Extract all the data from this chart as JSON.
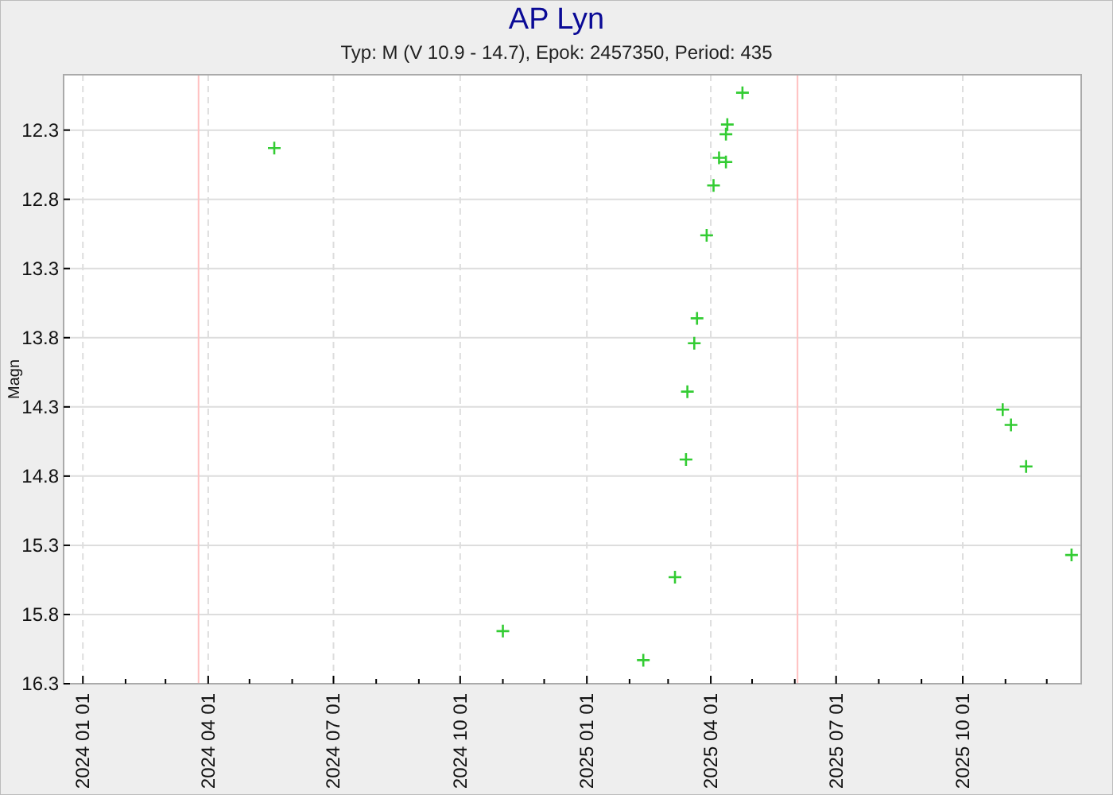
{
  "chart_data": {
    "type": "scatter",
    "title": "AP Lyn",
    "subtitle": "Typ: M (V 10.9 - 14.7), Epok: 2457350, Period: 435",
    "ylabel": "Magn",
    "xlim": [
      "2023-12-18",
      "2025-12-26"
    ],
    "ylim": [
      16.3,
      11.9
    ],
    "xticks": [
      {
        "value": "2024-01-01",
        "label": "2024 01 01"
      },
      {
        "value": "2024-02-01",
        "label": null
      },
      {
        "value": "2024-03-01",
        "label": null
      },
      {
        "value": "2024-04-01",
        "label": "2024 04 01"
      },
      {
        "value": "2024-05-01",
        "label": null
      },
      {
        "value": "2024-06-01",
        "label": null
      },
      {
        "value": "2024-07-01",
        "label": "2024 07 01"
      },
      {
        "value": "2024-08-01",
        "label": null
      },
      {
        "value": "2024-09-01",
        "label": null
      },
      {
        "value": "2024-10-01",
        "label": "2024 10 01"
      },
      {
        "value": "2024-11-01",
        "label": null
      },
      {
        "value": "2024-12-01",
        "label": null
      },
      {
        "value": "2025-01-01",
        "label": "2025 01 01"
      },
      {
        "value": "2025-02-01",
        "label": null
      },
      {
        "value": "2025-03-01",
        "label": null
      },
      {
        "value": "2025-04-01",
        "label": "2025 04 01"
      },
      {
        "value": "2025-05-01",
        "label": null
      },
      {
        "value": "2025-06-01",
        "label": null
      },
      {
        "value": "2025-07-01",
        "label": "2025 07 01"
      },
      {
        "value": "2025-08-01",
        "label": null
      },
      {
        "value": "2025-09-01",
        "label": null
      },
      {
        "value": "2025-10-01",
        "label": "2025 10 01"
      },
      {
        "value": "2025-11-01",
        "label": null
      },
      {
        "value": "2025-12-01",
        "label": null
      }
    ],
    "yticks": [
      12.3,
      12.8,
      13.3,
      13.8,
      14.3,
      14.8,
      15.3,
      15.8,
      16.3
    ],
    "grid": true,
    "marker": "cross",
    "ref_lines": [
      {
        "axis": "x",
        "value": "2024-03-25",
        "color": "#ffc0c0"
      },
      {
        "axis": "x",
        "value": "2025-06-03",
        "color": "#ffc0c0"
      }
    ],
    "series": [
      {
        "color": "#33cc33",
        "x": [
          "2024-05-19",
          "2024-11-01",
          "2025-02-11",
          "2025-03-06",
          "2025-03-14",
          "2025-03-15",
          "2025-03-20",
          "2025-03-22",
          "2025-03-29",
          "2025-04-03",
          "2025-04-07",
          "2025-04-12",
          "2025-04-12",
          "2025-04-13",
          "2025-04-24",
          "2025-10-30",
          "2025-11-05",
          "2025-11-16",
          "2025-12-19"
        ],
        "values": [
          12.43,
          15.92,
          16.13,
          15.53,
          14.68,
          14.19,
          13.84,
          13.66,
          13.06,
          12.7,
          12.5,
          12.53,
          12.33,
          12.26,
          12.03,
          14.32,
          14.43,
          14.73,
          15.37
        ]
      }
    ]
  }
}
